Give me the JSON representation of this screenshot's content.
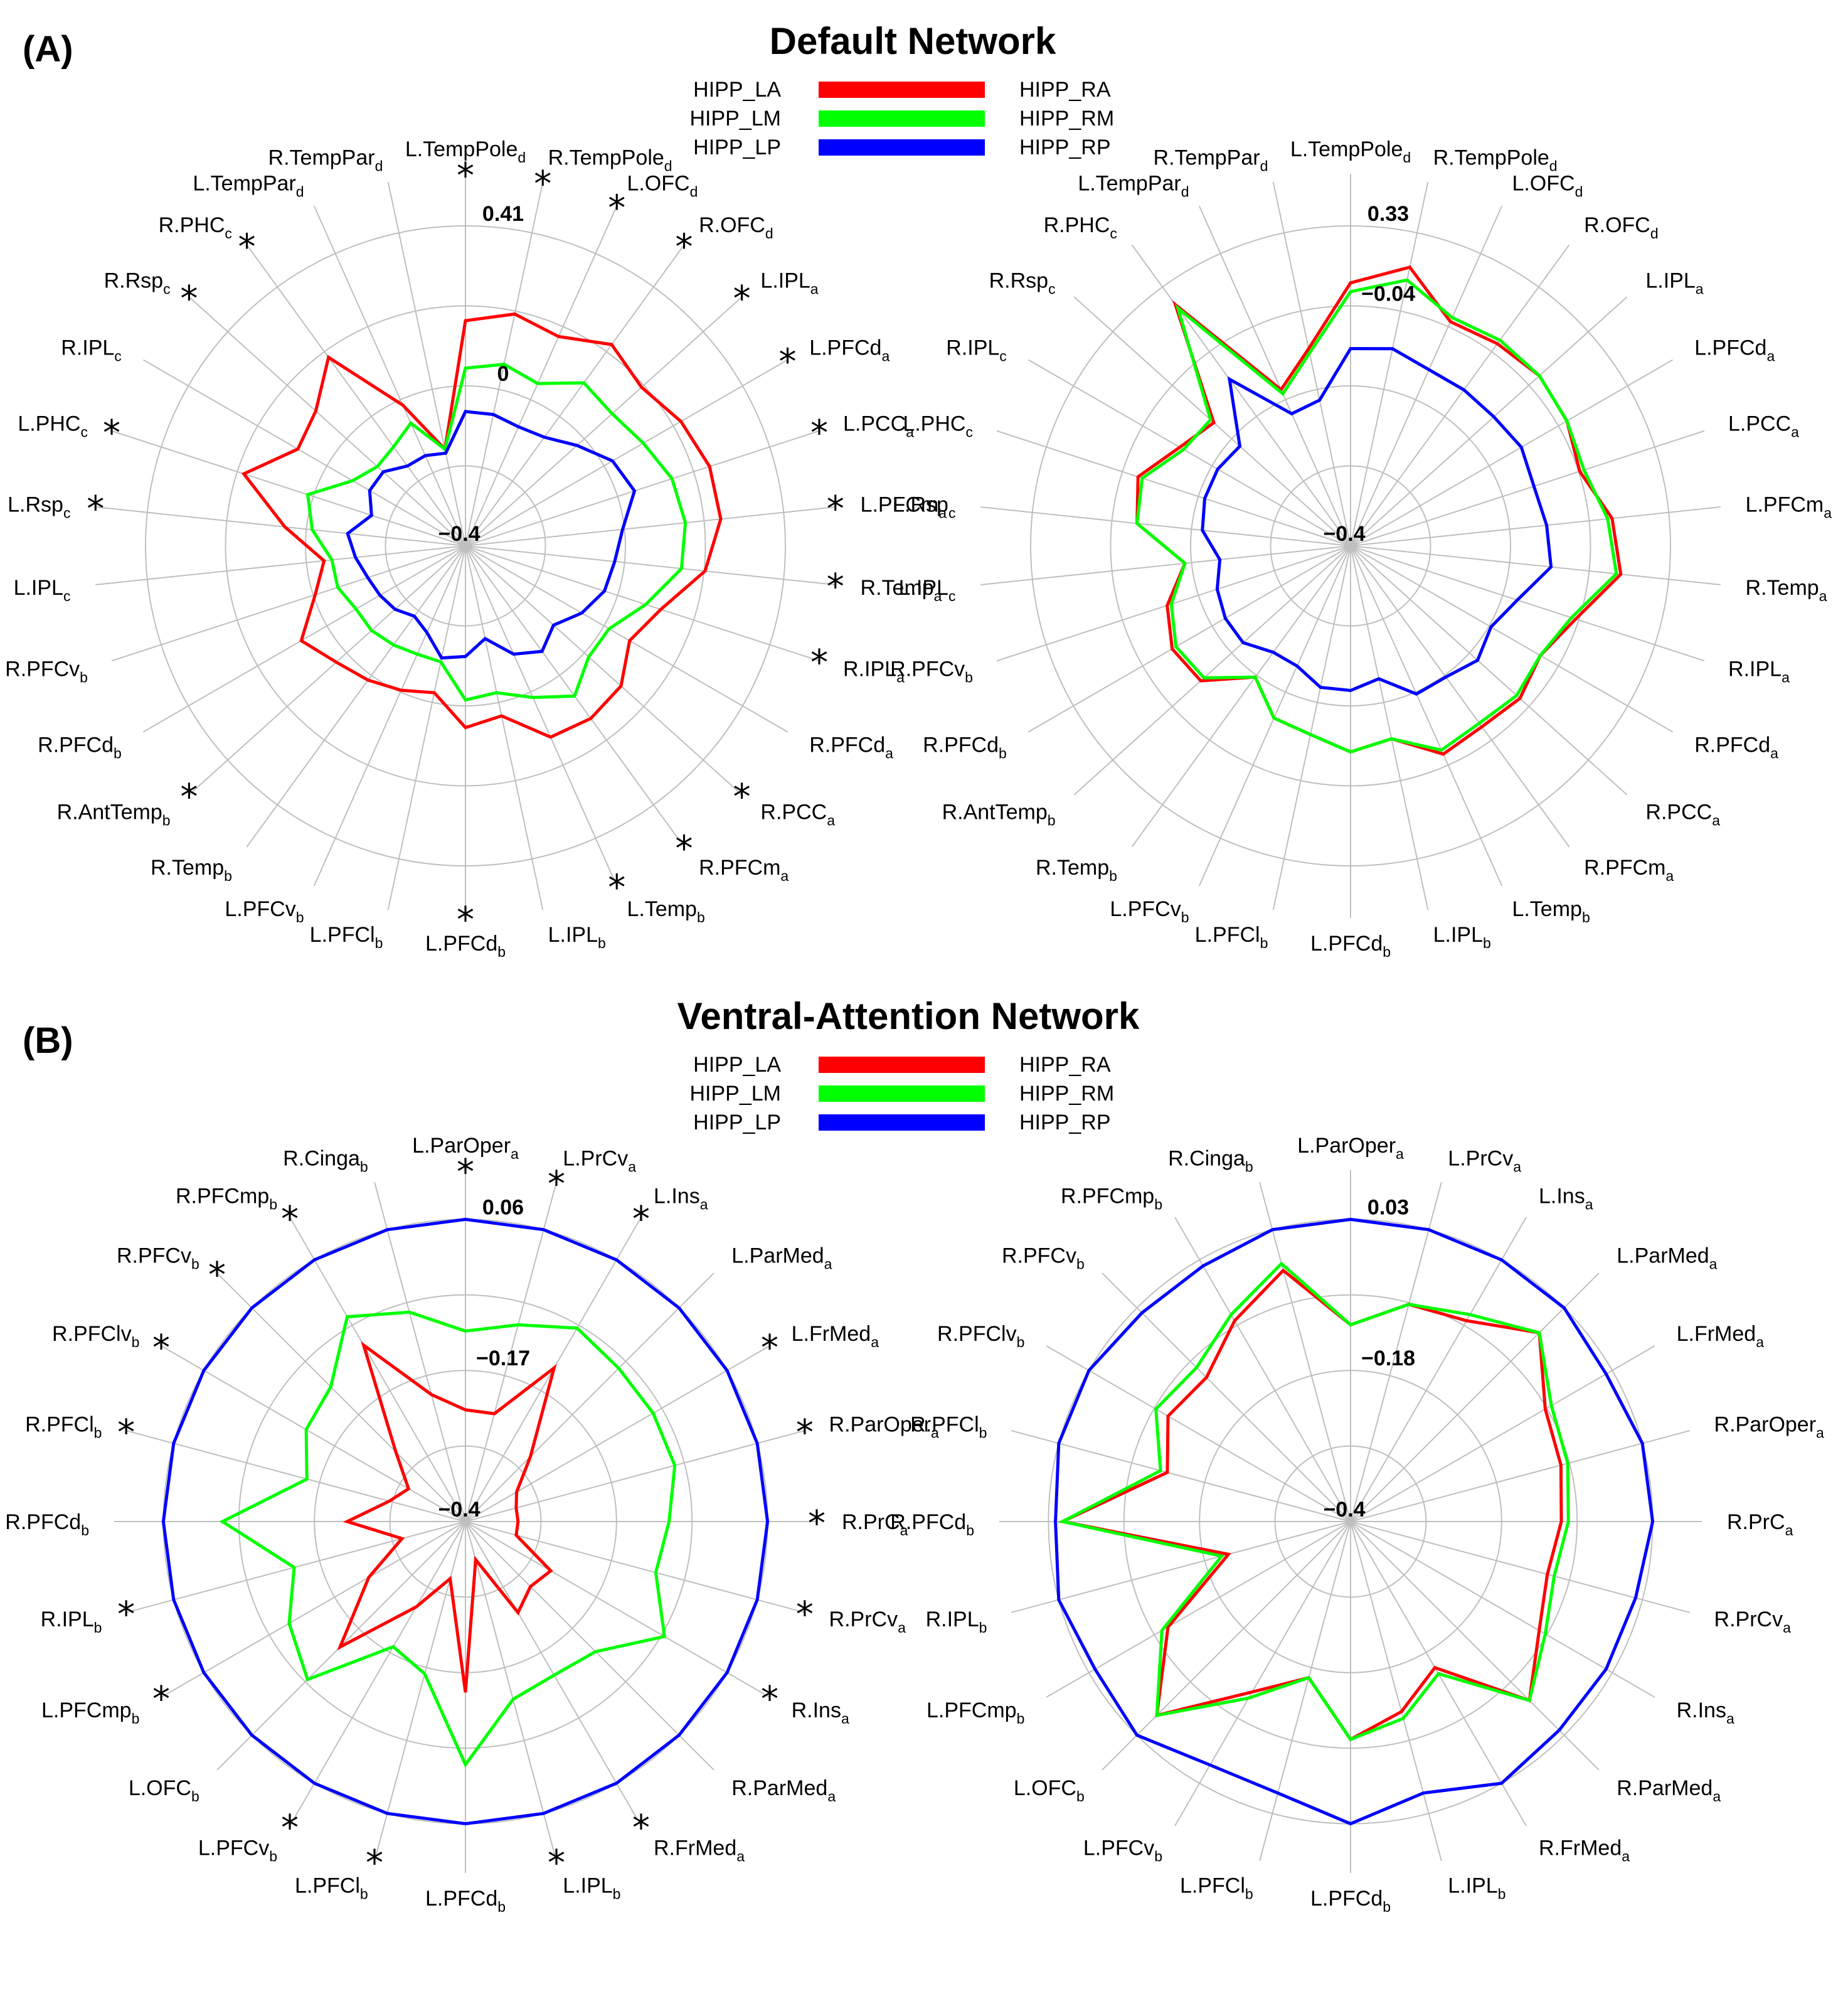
{
  "figure": {
    "panels": [
      {
        "label": "(A)",
        "title": "Default Network"
      },
      {
        "label": "(B)",
        "title": "Ventral-Attention Network"
      }
    ]
  },
  "chart_data": [
    {
      "type": "radar",
      "panel": "(A)",
      "side": "left",
      "title": "Default Network",
      "legend": [
        {
          "name": "HIPP_LA",
          "color": "#ff0000"
        },
        {
          "name": "HIPP_LM",
          "color": "#00ff00"
        },
        {
          "name": "HIPP_LP",
          "color": "#0000ff"
        }
      ],
      "axes": [
        "L.TempPole_d",
        "R.TempPole_d",
        "L.OFC_d",
        "R.OFC_d",
        "L.IPL_a",
        "L.PFCd_a",
        "L.PCC_a",
        "L.PFCm_a",
        "R.Temp_a",
        "R.IPL_a",
        "R.PFCd_a",
        "R.PCC_a",
        "R.PFCm_a",
        "L.Temp_b",
        "L.IPL_b",
        "L.PFCd_b",
        "L.PFCl_b",
        "L.PFCv_b",
        "R.Temp_b",
        "R.AntTemp_b",
        "R.PFCd_b",
        "R.PFCv_b",
        "L.IPL_c",
        "L.Rsp_c",
        "L.PHC_c",
        "R.IPL_c",
        "R.Rsp_c",
        "R.PHC_c",
        "L.TempPar_d",
        "R.TempPar_d"
      ],
      "significant": [
        true,
        true,
        true,
        true,
        true,
        true,
        true,
        true,
        true,
        true,
        false,
        true,
        true,
        true,
        false,
        true,
        false,
        false,
        false,
        true,
        false,
        false,
        false,
        true,
        true,
        false,
        true,
        true,
        false,
        false
      ],
      "rings": 4,
      "ring_labels": [
        {
          "ring": 0,
          "text": "−0.4"
        },
        {
          "ring": 2,
          "text": "0"
        },
        {
          "ring": 4,
          "text": "0.41"
        }
      ],
      "range": [
        -0.4,
        0.41
      ],
      "series": [
        {
          "name": "HIPP_LA",
          "values": [
            0.17,
            0.2,
            0.18,
            0.23,
            0.2,
            0.23,
            0.25,
            0.25,
            0.21,
            0.12,
            0.08,
            0.13,
            0.14,
            0.13,
            0.04,
            0.06,
            -0.02,
            0.0,
            0.02,
            0.04,
            0.08,
            0.0,
            -0.04,
            0.06,
            0.19,
            0.09,
            0.11,
            0.19,
            -0.01,
            -0.15
          ]
        },
        {
          "name": "HIPP_LM",
          "values": [
            0.05,
            0.07,
            0.05,
            0.11,
            0.1,
            0.12,
            0.15,
            0.16,
            0.15,
            0.08,
            0.02,
            0.02,
            0.07,
            0.02,
            -0.02,
            -0.01,
            -0.1,
            -0.1,
            -0.09,
            -0.08,
            -0.08,
            -0.06,
            -0.06,
            -0.01,
            0.02,
            -0.07,
            -0.1,
            -0.09,
            -0.06,
            -0.15
          ]
        },
        {
          "name": "HIPP_LP",
          "values": [
            -0.06,
            -0.06,
            -0.07,
            -0.06,
            -0.02,
            0.03,
            0.05,
            0.0,
            -0.02,
            -0.03,
            -0.06,
            -0.1,
            -0.07,
            -0.1,
            -0.16,
            -0.12,
            -0.11,
            -0.16,
            -0.18,
            -0.16,
            -0.15,
            -0.14,
            -0.12,
            -0.1,
            -0.15,
            -0.12,
            -0.12,
            -0.15,
            -0.15,
            -0.16
          ]
        }
      ]
    },
    {
      "type": "radar",
      "panel": "(A)",
      "side": "right",
      "title": "Default Network",
      "legend": [
        {
          "name": "HIPP_RA",
          "color": "#ff0000"
        },
        {
          "name": "HIPP_RM",
          "color": "#00ff00"
        },
        {
          "name": "HIPP_RP",
          "color": "#0000ff"
        }
      ],
      "axes": [
        "L.TempPole_d",
        "R.TempPole_d",
        "L.OFC_d",
        "R.OFC_d",
        "L.IPL_a",
        "L.PFCd_a",
        "L.PCC_a",
        "L.PFCm_a",
        "R.Temp_a",
        "R.IPL_a",
        "R.PFCd_a",
        "R.PCC_a",
        "R.PFCm_a",
        "L.Temp_b",
        "L.IPL_b",
        "L.PFCd_b",
        "L.PFCl_b",
        "L.PFCv_b",
        "R.Temp_b",
        "R.AntTemp_b",
        "R.PFCd_b",
        "R.PFCv_b",
        "L.IPL_c",
        "L.Rsp_c",
        "L.PHC_c",
        "R.IPL_c",
        "R.Rsp_c",
        "R.PHC_c",
        "L.TempPar_d",
        "R.TempPar_d"
      ],
      "significant": [],
      "rings": 4,
      "ring_labels": [
        {
          "ring": 0,
          "text": "−0.4"
        },
        {
          "ring": 3,
          "text": "−0.04"
        },
        {
          "ring": 4,
          "text": "0.33"
        }
      ],
      "range": [
        -0.4,
        0.33
      ],
      "series": [
        {
          "name": "HIPP_RA",
          "values": [
            0.2,
            0.25,
            0.16,
            0.17,
            0.18,
            0.17,
            0.15,
            0.2,
            0.22,
            0.14,
            0.1,
            0.12,
            0.11,
            0.12,
            0.05,
            0.07,
            0.04,
            0.03,
            -0.03,
            0.06,
            0.07,
            0.04,
            -0.02,
            0.09,
            0.11,
            0.05,
            0.02,
            0.28,
            -0.01,
            0.06
          ]
        },
        {
          "name": "HIPP_RM",
          "values": [
            0.18,
            0.22,
            0.17,
            0.18,
            0.18,
            0.17,
            0.16,
            0.19,
            0.21,
            0.13,
            0.1,
            0.11,
            0.1,
            0.11,
            0.05,
            0.07,
            0.04,
            0.03,
            -0.03,
            0.05,
            0.06,
            0.03,
            -0.02,
            0.09,
            0.1,
            0.04,
            0.03,
            0.27,
            -0.02,
            0.05
          ]
        },
        {
          "name": "HIPP_RP",
          "values": [
            0.05,
            0.06,
            0.04,
            0.04,
            0.04,
            0.05,
            0.04,
            0.05,
            0.06,
            0.0,
            -0.03,
            -0.01,
            -0.03,
            -0.03,
            -0.09,
            -0.07,
            -0.07,
            -0.1,
            -0.1,
            -0.07,
            -0.07,
            -0.08,
            -0.1,
            -0.06,
            -0.05,
            -0.05,
            -0.06,
            0.07,
            -0.07,
            -0.06
          ]
        }
      ]
    },
    {
      "type": "radar",
      "panel": "(B)",
      "side": "left",
      "title": "Ventral-Attention Network",
      "legend": [
        {
          "name": "HIPP_LA",
          "color": "#ff0000"
        },
        {
          "name": "HIPP_LM",
          "color": "#00ff00"
        },
        {
          "name": "HIPP_LP",
          "color": "#0000ff"
        }
      ],
      "axes": [
        "L.ParOper_a",
        "L.PrCv_a",
        "L.Ins_a",
        "L.ParMed_a",
        "L.FrMed_a",
        "R.ParOper_a",
        "R.PrC_a",
        "R.PrCv_a",
        "R.Ins_a",
        "R.ParMed_a",
        "R.FrMed_a",
        "L.IPL_b",
        "L.PFCd_b",
        "L.PFCl_b",
        "L.PFCv_b",
        "L.OFC_b",
        "L.PFCmp_b",
        "R.IPL_b",
        "R.PFCd_b",
        "R.PFCl_b",
        "R.PFClv_b",
        "R.PFCv_b",
        "R.PFCmp_b",
        "R.Cinga_b"
      ],
      "significant": [
        true,
        true,
        true,
        false,
        true,
        true,
        true,
        true,
        true,
        false,
        true,
        true,
        false,
        true,
        true,
        false,
        true,
        true,
        false,
        true,
        true,
        true,
        true,
        false
      ],
      "rings": 4,
      "ring_labels": [
        {
          "ring": 0,
          "text": "−0.4"
        },
        {
          "ring": 2,
          "text": "−0.17"
        },
        {
          "ring": 4,
          "text": "0.06"
        }
      ],
      "range": [
        -0.4,
        0.06
      ],
      "series": [
        {
          "name": "HIPP_LA",
          "values": [
            -0.23,
            -0.23,
            -0.13,
            -0.26,
            -0.31,
            -0.32,
            -0.32,
            -0.32,
            -0.25,
            -0.26,
            -0.24,
            -0.34,
            -0.14,
            -0.31,
            -0.25,
            -0.13,
            -0.23,
            -0.3,
            -0.22,
            -0.28,
            -0.3,
            -0.25,
            -0.09,
            -0.2
          ]
        },
        {
          "name": "HIPP_LM",
          "values": [
            -0.11,
            -0.09,
            -0.06,
            -0.07,
            -0.07,
            -0.07,
            -0.09,
            -0.1,
            -0.05,
            -0.12,
            -0.13,
            -0.12,
            -0.03,
            -0.16,
            -0.18,
            -0.06,
            -0.09,
            -0.13,
            -0.03,
            -0.15,
            -0.12,
            -0.11,
            -0.04,
            -0.07
          ]
        },
        {
          "name": "HIPP_LP",
          "values": [
            0.06,
            0.06,
            0.06,
            0.06,
            0.06,
            0.06,
            0.06,
            0.06,
            0.06,
            0.06,
            0.06,
            0.06,
            0.06,
            0.06,
            0.06,
            0.06,
            0.06,
            0.06,
            0.06,
            0.06,
            0.06,
            0.06,
            0.06,
            0.06
          ]
        }
      ]
    },
    {
      "type": "radar",
      "panel": "(B)",
      "side": "right",
      "title": "Ventral-Attention Network",
      "legend": [
        {
          "name": "HIPP_RA",
          "color": "#ff0000"
        },
        {
          "name": "HIPP_RM",
          "color": "#00ff00"
        },
        {
          "name": "HIPP_RP",
          "color": "#0000ff"
        }
      ],
      "axes": [
        "L.ParOper_a",
        "L.PrCv_a",
        "L.Ins_a",
        "L.ParMed_a",
        "L.FrMed_a",
        "R.ParOper_a",
        "R.PrC_a",
        "R.PrCv_a",
        "R.Ins_a",
        "R.ParMed_a",
        "R.FrMed_a",
        "L.IPL_b",
        "L.PFCd_b",
        "L.PFCl_b",
        "L.PFCv_b",
        "L.OFC_b",
        "L.PFCmp_b",
        "R.IPL_b",
        "R.PFCd_b",
        "R.PFCl_b",
        "R.PFClv_b",
        "R.PFCv_b",
        "R.PFCmp_b",
        "R.Cinga_b"
      ],
      "significant": [],
      "rings": 4,
      "ring_labels": [
        {
          "ring": 0,
          "text": "−0.4"
        },
        {
          "ring": 2,
          "text": "−0.18"
        },
        {
          "ring": 4,
          "text": "0.03"
        }
      ],
      "range": [
        -0.4,
        0.03
      ],
      "series": [
        {
          "name": "HIPP_RA",
          "values": [
            -0.12,
            -0.08,
            -0.07,
            -0.02,
            -0.08,
            -0.09,
            -0.1,
            -0.11,
            -0.09,
            -0.04,
            -0.16,
            -0.12,
            -0.09,
            -0.17,
            -0.12,
            -0.01,
            -0.1,
            -0.22,
            0.01,
            -0.13,
            -0.1,
            -0.11,
            -0.07,
            -0.03
          ]
        },
        {
          "name": "HIPP_RM",
          "values": [
            -0.12,
            -0.08,
            -0.06,
            -0.02,
            -0.07,
            -0.08,
            -0.09,
            -0.1,
            -0.08,
            -0.04,
            -0.15,
            -0.11,
            -0.09,
            -0.17,
            -0.11,
            -0.01,
            -0.09,
            -0.21,
            0.01,
            -0.12,
            -0.08,
            -0.09,
            -0.06,
            -0.02
          ]
        },
        {
          "name": "HIPP_RP",
          "values": [
            0.03,
            0.03,
            0.03,
            0.03,
            0.02,
            0.03,
            0.03,
            0.02,
            0.02,
            0.02,
            0.03,
            0.0,
            0.03,
            0.0,
            0.0,
            0.03,
            0.02,
            0.03,
            0.02,
            0.03,
            0.03,
            0.02,
            0.02,
            0.03
          ]
        }
      ]
    }
  ]
}
